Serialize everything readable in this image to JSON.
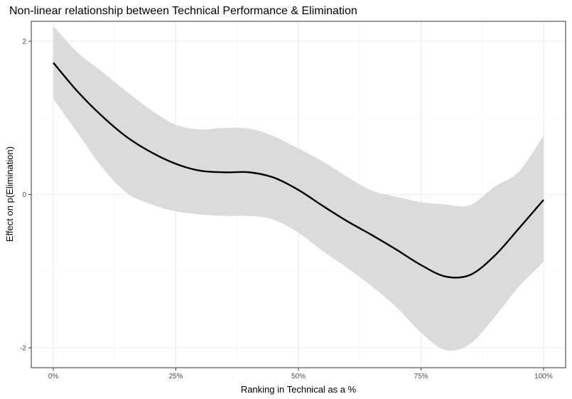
{
  "chart_data": {
    "type": "line",
    "title": "Non-linear relationship between Technical Performance & Elimination",
    "xlabel": "Ranking in Technical as a %",
    "ylabel": "Effect on p(Elimination)",
    "xlim": [
      -0.045,
      1.045
    ],
    "ylim": [
      -2.26,
      2.26
    ],
    "x_ticks": [
      0,
      0.25,
      0.5,
      0.75,
      1
    ],
    "x_tick_labels": [
      "0%",
      "25%",
      "50%",
      "75%",
      "100%"
    ],
    "y_ticks": [
      -2,
      0,
      2
    ],
    "y_tick_labels": [
      "-2",
      "0",
      "2"
    ],
    "grid": true,
    "legend": "none",
    "series": [
      {
        "x": [
          0,
          0.05,
          0.1,
          0.15,
          0.2,
          0.25,
          0.3,
          0.35,
          0.4,
          0.45,
          0.5,
          0.55,
          0.6,
          0.65,
          0.7,
          0.75,
          0.8,
          0.85,
          0.9,
          0.95,
          1
        ],
        "y": [
          1.72,
          1.34,
          1.02,
          0.75,
          0.55,
          0.4,
          0.31,
          0.29,
          0.29,
          0.22,
          0.06,
          -0.15,
          -0.35,
          -0.53,
          -0.72,
          -0.92,
          -1.07,
          -1.05,
          -0.8,
          -0.44,
          -0.07
        ],
        "lower": [
          1.25,
          0.8,
          0.35,
          0.02,
          -0.13,
          -0.22,
          -0.26,
          -0.28,
          -0.28,
          -0.33,
          -0.5,
          -0.74,
          -0.96,
          -1.2,
          -1.47,
          -1.8,
          -2.03,
          -1.95,
          -1.6,
          -1.2,
          -0.88
        ],
        "upper": [
          2.2,
          1.85,
          1.6,
          1.34,
          1.1,
          0.91,
          0.85,
          0.87,
          0.86,
          0.76,
          0.6,
          0.43,
          0.23,
          0.05,
          -0.03,
          -0.1,
          -0.13,
          -0.14,
          0.1,
          0.3,
          0.77
        ]
      }
    ],
    "colors": {
      "line": "#000000",
      "ribbon": "#d9d9d9",
      "grid_major": "#ebebeb",
      "grid_minor": "#f5f5f5",
      "panel_border": "#333333"
    }
  }
}
